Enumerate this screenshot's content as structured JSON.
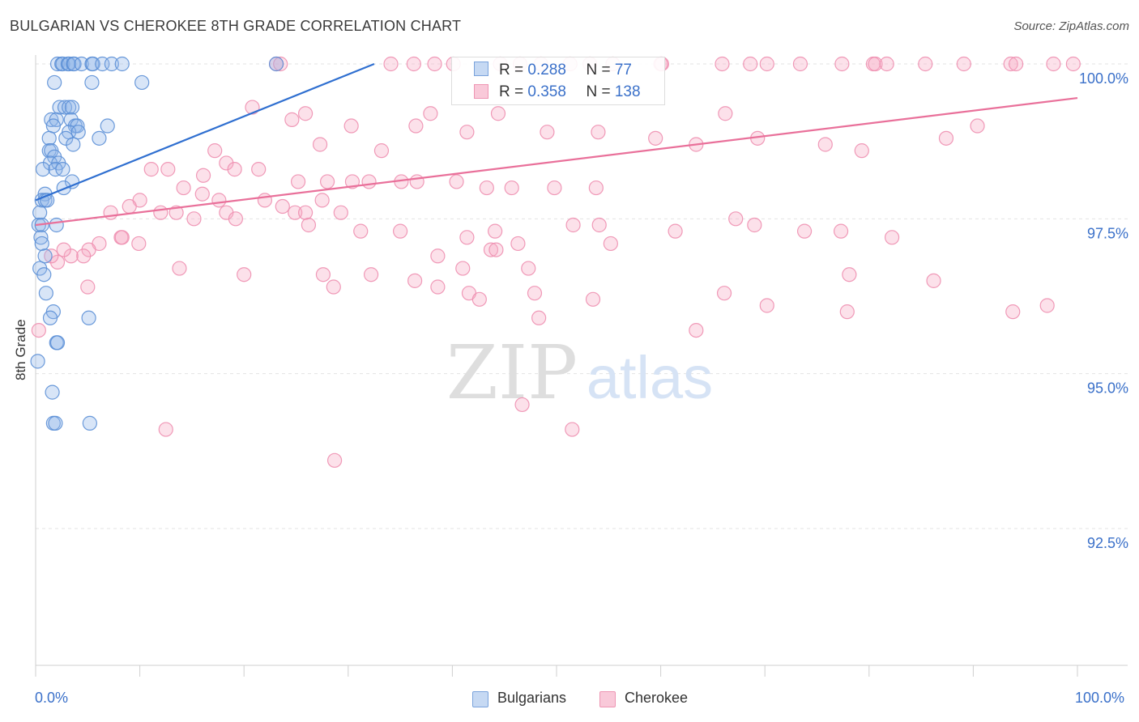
{
  "title": "BULGARIAN VS CHEROKEE 8TH GRADE CORRELATION CHART",
  "source": "Source: ZipAtlas.com",
  "watermark": {
    "zip": "ZIP",
    "atlas": "atlas"
  },
  "legend": {
    "rows": [
      {
        "r_label": "R = ",
        "r_value": "0.288",
        "n_label": "N = ",
        "n_value": "77"
      },
      {
        "r_label": "R = ",
        "r_value": "0.358",
        "n_label": "N = ",
        "n_value": "138"
      }
    ]
  },
  "bottom_legend": [
    "Bulgarians",
    "Cherokee"
  ],
  "chart_data": {
    "type": "scatter",
    "title": "BULGARIAN VS CHEROKEE 8TH GRADE CORRELATION CHART",
    "ylabel": "8th Grade",
    "xlabel": "",
    "x_tick_labels": [
      "0.0%",
      "100.0%"
    ],
    "y_tick_labels": [
      "100.0%",
      "97.5%",
      "95.0%",
      "92.5%"
    ],
    "xlim": [
      0,
      100
    ],
    "ylim": [
      90.0,
      100.2
    ],
    "grid": true,
    "legend_placement": "top-center",
    "colors": {
      "bulgarians": "#5b8fd6",
      "cherokee": "#ee8fb0",
      "bulgarians_line": "#2f6fd0",
      "cherokee_line": "#e9709a",
      "tick_label": "#3a70c9"
    },
    "series": [
      {
        "name": "Bulgarians",
        "trend": {
          "x": [
            0,
            32.5
          ],
          "y": [
            97.8,
            100.0
          ]
        },
        "points": [
          [
            2.1,
            100
          ],
          [
            2.5,
            100
          ],
          [
            2.6,
            100
          ],
          [
            3.1,
            100
          ],
          [
            3.2,
            100
          ],
          [
            3.6,
            100
          ],
          [
            3.7,
            100
          ],
          [
            4.4,
            100
          ],
          [
            5.4,
            100
          ],
          [
            5.5,
            100
          ],
          [
            6.4,
            100
          ],
          [
            7.3,
            100
          ],
          [
            8.3,
            100
          ],
          [
            23.1,
            100
          ],
          [
            1.8,
            99.7
          ],
          [
            5.4,
            99.7
          ],
          [
            10.2,
            99.7
          ],
          [
            2.3,
            99.3
          ],
          [
            2.8,
            99.3
          ],
          [
            3.2,
            99.3
          ],
          [
            3.5,
            99.3
          ],
          [
            1.5,
            99.1
          ],
          [
            2.0,
            99.1
          ],
          [
            3.4,
            99.1
          ],
          [
            1.7,
            99.0
          ],
          [
            3.8,
            99.0
          ],
          [
            4.0,
            99.0
          ],
          [
            6.9,
            99.0
          ],
          [
            3.2,
            98.9
          ],
          [
            4.1,
            98.9
          ],
          [
            1.3,
            98.8
          ],
          [
            2.9,
            98.8
          ],
          [
            6.1,
            98.8
          ],
          [
            3.6,
            98.7
          ],
          [
            1.3,
            98.6
          ],
          [
            1.5,
            98.6
          ],
          [
            1.8,
            98.5
          ],
          [
            1.4,
            98.4
          ],
          [
            2.2,
            98.4
          ],
          [
            0.7,
            98.3
          ],
          [
            1.9,
            98.3
          ],
          [
            2.6,
            98.3
          ],
          [
            3.5,
            98.1
          ],
          [
            2.7,
            98.0
          ],
          [
            0.9,
            97.9
          ],
          [
            0.6,
            97.8
          ],
          [
            0.9,
            97.8
          ],
          [
            1.1,
            97.8
          ],
          [
            0.4,
            97.6
          ],
          [
            0.3,
            97.4
          ],
          [
            0.6,
            97.4
          ],
          [
            2.0,
            97.4
          ],
          [
            0.5,
            97.2
          ],
          [
            0.6,
            97.1
          ],
          [
            0.9,
            96.9
          ],
          [
            0.4,
            96.7
          ],
          [
            0.8,
            96.6
          ],
          [
            1.0,
            96.3
          ],
          [
            1.7,
            96.0
          ],
          [
            5.1,
            95.9
          ],
          [
            1.4,
            95.9
          ],
          [
            2.0,
            95.5
          ],
          [
            2.1,
            95.5
          ],
          [
            0.2,
            95.2
          ],
          [
            1.6,
            94.7
          ],
          [
            1.7,
            94.2
          ],
          [
            1.9,
            94.2
          ],
          [
            5.2,
            94.2
          ]
        ]
      },
      {
        "name": "Cherokee",
        "trend": {
          "x": [
            0,
            100
          ],
          "y": [
            97.4,
            99.45
          ]
        },
        "points": [
          [
            23.1,
            100
          ],
          [
            23.5,
            100
          ],
          [
            34.1,
            100
          ],
          [
            36.3,
            100
          ],
          [
            38.3,
            100
          ],
          [
            40.1,
            100
          ],
          [
            44.6,
            100
          ],
          [
            46.5,
            100
          ],
          [
            48.5,
            100
          ],
          [
            51.3,
            100
          ],
          [
            53.2,
            100
          ],
          [
            55.4,
            100
          ],
          [
            60.0,
            100
          ],
          [
            60.1,
            100
          ],
          [
            65.9,
            100
          ],
          [
            68.6,
            100
          ],
          [
            70.2,
            100
          ],
          [
            73.4,
            100
          ],
          [
            77.4,
            100
          ],
          [
            80.4,
            100
          ],
          [
            80.6,
            100
          ],
          [
            81.7,
            100
          ],
          [
            85.4,
            100
          ],
          [
            89.1,
            100
          ],
          [
            93.6,
            100
          ],
          [
            94.1,
            100
          ],
          [
            97.7,
            100
          ],
          [
            99.6,
            100
          ],
          [
            20.8,
            99.3
          ],
          [
            25.9,
            99.2
          ],
          [
            37.9,
            99.2
          ],
          [
            44.4,
            99.2
          ],
          [
            66.2,
            99.2
          ],
          [
            90.4,
            99.0
          ],
          [
            24.6,
            99.1
          ],
          [
            30.3,
            99.0
          ],
          [
            36.5,
            99.0
          ],
          [
            41.4,
            98.9
          ],
          [
            49.1,
            98.9
          ],
          [
            54.0,
            98.9
          ],
          [
            59.5,
            98.8
          ],
          [
            63.4,
            98.7
          ],
          [
            69.3,
            98.8
          ],
          [
            75.8,
            98.7
          ],
          [
            79.3,
            98.6
          ],
          [
            87.4,
            98.8
          ],
          [
            33.2,
            98.6
          ],
          [
            27.3,
            98.7
          ],
          [
            17.2,
            98.6
          ],
          [
            18.3,
            98.4
          ],
          [
            19.1,
            98.3
          ],
          [
            21.4,
            98.3
          ],
          [
            16.1,
            98.2
          ],
          [
            25.2,
            98.1
          ],
          [
            28.0,
            98.1
          ],
          [
            30.4,
            98.1
          ],
          [
            32.0,
            98.1
          ],
          [
            35.1,
            98.1
          ],
          [
            36.6,
            98.1
          ],
          [
            40.4,
            98.1
          ],
          [
            43.3,
            98.0
          ],
          [
            45.7,
            98.0
          ],
          [
            49.8,
            98.0
          ],
          [
            53.8,
            98.0
          ],
          [
            11.1,
            98.3
          ],
          [
            12.7,
            98.3
          ],
          [
            14.2,
            98.0
          ],
          [
            16.0,
            97.9
          ],
          [
            17.6,
            97.8
          ],
          [
            22.0,
            97.8
          ],
          [
            23.7,
            97.7
          ],
          [
            24.9,
            97.6
          ],
          [
            25.9,
            97.6
          ],
          [
            27.5,
            97.8
          ],
          [
            29.3,
            97.6
          ],
          [
            10.0,
            97.8
          ],
          [
            9.0,
            97.7
          ],
          [
            7.2,
            97.6
          ],
          [
            12.0,
            97.6
          ],
          [
            13.5,
            97.6
          ],
          [
            15.2,
            97.5
          ],
          [
            18.3,
            97.6
          ],
          [
            19.2,
            97.5
          ],
          [
            26.2,
            97.4
          ],
          [
            31.2,
            97.3
          ],
          [
            35.0,
            97.3
          ],
          [
            41.4,
            97.2
          ],
          [
            44.1,
            97.3
          ],
          [
            51.6,
            97.4
          ],
          [
            54.1,
            97.4
          ],
          [
            61.4,
            97.3
          ],
          [
            67.2,
            97.5
          ],
          [
            69.0,
            97.4
          ],
          [
            77.3,
            97.3
          ],
          [
            82.2,
            97.2
          ],
          [
            8.2,
            97.2
          ],
          [
            9.9,
            97.1
          ],
          [
            6.1,
            97.1
          ],
          [
            5.1,
            97.0
          ],
          [
            4.6,
            96.9
          ],
          [
            3.4,
            96.9
          ],
          [
            2.1,
            96.8
          ],
          [
            13.8,
            96.7
          ],
          [
            20.0,
            96.6
          ],
          [
            27.6,
            96.6
          ],
          [
            28.6,
            96.4
          ],
          [
            36.4,
            96.5
          ],
          [
            38.6,
            96.4
          ],
          [
            41.6,
            96.3
          ],
          [
            42.6,
            96.2
          ],
          [
            47.9,
            96.3
          ],
          [
            53.5,
            96.2
          ],
          [
            66.1,
            96.3
          ],
          [
            70.2,
            96.1
          ],
          [
            77.9,
            96.0
          ],
          [
            86.2,
            96.5
          ],
          [
            93.8,
            96.0
          ],
          [
            97.1,
            96.1
          ],
          [
            48.3,
            95.9
          ],
          [
            47.3,
            96.7
          ],
          [
            32.2,
            96.6
          ],
          [
            38.6,
            96.9
          ],
          [
            41.0,
            96.7
          ],
          [
            43.7,
            97.0
          ],
          [
            44.2,
            97.0
          ],
          [
            46.3,
            97.1
          ],
          [
            55.2,
            97.1
          ],
          [
            73.8,
            97.3
          ],
          [
            78.1,
            96.6
          ],
          [
            5.0,
            96.4
          ],
          [
            0.3,
            95.7
          ],
          [
            8.3,
            97.2
          ],
          [
            2.7,
            97.0
          ],
          [
            1.5,
            96.9
          ],
          [
            12.5,
            94.1
          ],
          [
            28.7,
            93.6
          ],
          [
            46.7,
            94.5
          ],
          [
            51.5,
            94.1
          ],
          [
            63.4,
            95.7
          ]
        ]
      }
    ]
  }
}
